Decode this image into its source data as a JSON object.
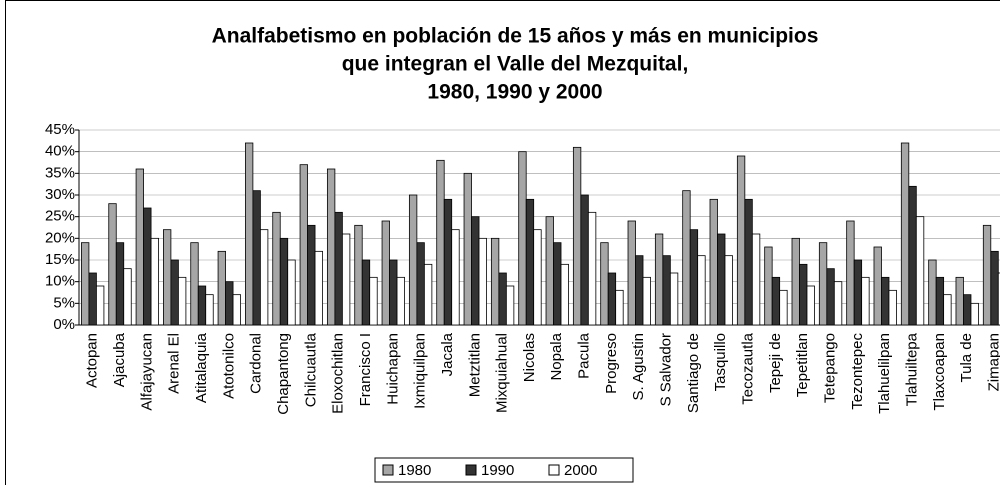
{
  "chart_data": {
    "type": "bar",
    "title_lines": [
      "Analfabetismo en población de 15 años y más en municipios",
      "que integran el Valle del Mezquital,",
      "1980, 1990 y 2000"
    ],
    "categories": [
      "Actopan",
      "Ajacuba",
      "Alfajayucan",
      "Arenal El",
      "Atitalaquia",
      "Atotonilco",
      "Cardonal",
      "Chapantong",
      "Chilcuautla",
      "Eloxochitlan",
      "Francisco I",
      "Huichapan",
      "Ixmiquilpan",
      "Jacala",
      "Metztitlan",
      "Mixquiahual",
      "Nicolas",
      "Nopala",
      "Pacula",
      "Progreso",
      "S. Agustin",
      "S Salvador",
      "Santiago de",
      "Tasquillo",
      "Tecozautla",
      "Tepeji de",
      "Tepetitlan",
      "Tetepango",
      "Tezontepec",
      "Tlahuelilpan",
      "Tlahuiltepa",
      "Tlaxcoapan",
      "Tula de",
      "Zimapan"
    ],
    "series": [
      {
        "name": "1980",
        "color": "#a6a6a6",
        "values": [
          19,
          28,
          36,
          22,
          19,
          17,
          42,
          26,
          37,
          36,
          23,
          24,
          30,
          38,
          35,
          20,
          40,
          25,
          41,
          19,
          24,
          21,
          31,
          29,
          39,
          18,
          20,
          19,
          24,
          18,
          42,
          15,
          11,
          23
        ]
      },
      {
        "name": "1990",
        "color": "#333333",
        "values": [
          12,
          19,
          27,
          15,
          9,
          10,
          31,
          20,
          23,
          26,
          15,
          15,
          19,
          29,
          25,
          12,
          29,
          19,
          30,
          12,
          16,
          16,
          22,
          21,
          29,
          11,
          14,
          13,
          15,
          11,
          32,
          11,
          7,
          17
        ]
      },
      {
        "name": "2000",
        "color": "#ffffff",
        "values": [
          9,
          13,
          20,
          11,
          7,
          7,
          22,
          15,
          17,
          21,
          11,
          11,
          14,
          22,
          20,
          9,
          22,
          14,
          26,
          8,
          11,
          12,
          16,
          16,
          21,
          8,
          9,
          10,
          11,
          8,
          25,
          7,
          5,
          12
        ]
      }
    ],
    "ylim": [
      0,
      45
    ],
    "yticks": [
      {
        "value": 0,
        "label": "0%"
      },
      {
        "value": 5,
        "label": "5%"
      },
      {
        "value": 10,
        "label": "10%"
      },
      {
        "value": 15,
        "label": "15%"
      },
      {
        "value": 20,
        "label": "20%"
      },
      {
        "value": 25,
        "label": "25%"
      },
      {
        "value": 30,
        "label": "30%"
      },
      {
        "value": 35,
        "label": "35%"
      },
      {
        "value": 40,
        "label": "40%"
      },
      {
        "value": 45,
        "label": "45%"
      }
    ],
    "grid": true,
    "legend": "bottom"
  }
}
